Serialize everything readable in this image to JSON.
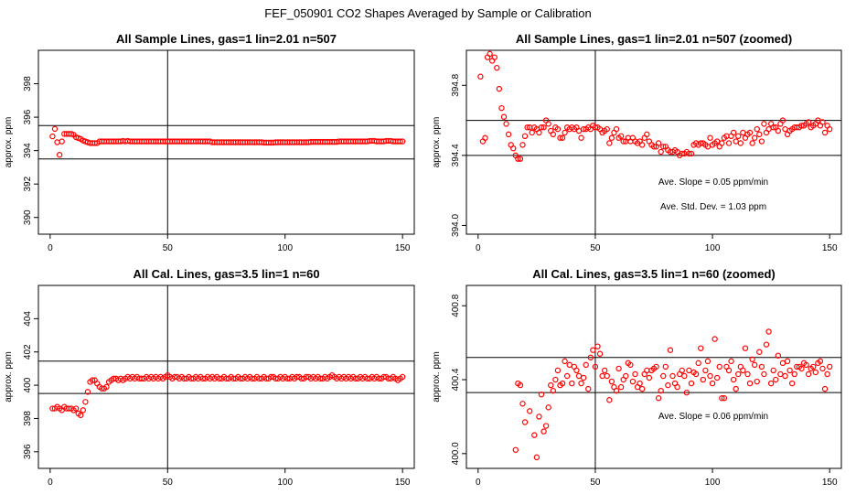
{
  "page": {
    "supertitle": "FEF_050901  CO2 Shapes Averaged by Sample or Calibration"
  },
  "chart_data": [
    {
      "type": "scatter",
      "title": "All Sample Lines, gas=1 lin=2.01 n=507",
      "xlabel": "",
      "ylabel": "approx. ppm",
      "xlim": [
        -5,
        155
      ],
      "ylim": [
        389,
        400
      ],
      "xticks": [
        "0",
        "50",
        "100",
        "150"
      ],
      "yticks": [
        "390",
        "392",
        "394",
        "396",
        "398"
      ],
      "hlines": [
        395.5,
        393.5
      ],
      "vline": 50,
      "color": "#ff0000",
      "annotations": [],
      "x": [
        1,
        2,
        3,
        4,
        5,
        6,
        7,
        8,
        9,
        10,
        11,
        12,
        13,
        14,
        15,
        16,
        17,
        18,
        19,
        20,
        21,
        22,
        23,
        24,
        25,
        26,
        27,
        28,
        29,
        30,
        31,
        32,
        33,
        34,
        35,
        36,
        37,
        38,
        39,
        40,
        41,
        42,
        43,
        44,
        45,
        46,
        47,
        48,
        49,
        50,
        51,
        52,
        53,
        54,
        55,
        56,
        57,
        58,
        59,
        60,
        61,
        62,
        63,
        64,
        65,
        66,
        67,
        68,
        69,
        70,
        71,
        72,
        73,
        74,
        75,
        76,
        77,
        78,
        79,
        80,
        81,
        82,
        83,
        84,
        85,
        86,
        87,
        88,
        89,
        90,
        91,
        92,
        93,
        94,
        95,
        96,
        97,
        98,
        99,
        100,
        101,
        102,
        103,
        104,
        105,
        106,
        107,
        108,
        109,
        110,
        111,
        112,
        113,
        114,
        115,
        116,
        117,
        118,
        119,
        120,
        121,
        122,
        123,
        124,
        125,
        126,
        127,
        128,
        129,
        130,
        131,
        132,
        133,
        134,
        135,
        136,
        137,
        138,
        139,
        140,
        141,
        142,
        143,
        144,
        145,
        146,
        147,
        148,
        149,
        150
      ],
      "y": [
        394.85,
        395.3,
        394.5,
        393.75,
        394.55,
        395.0,
        395.0,
        395.0,
        395.0,
        394.95,
        394.8,
        394.75,
        394.7,
        394.6,
        394.55,
        394.5,
        394.45,
        394.45,
        394.45,
        394.45,
        394.55,
        394.55,
        394.55,
        394.55,
        394.55,
        394.55,
        394.55,
        394.55,
        394.55,
        394.55,
        394.58,
        394.55,
        394.58,
        394.55,
        394.55,
        394.55,
        394.55,
        394.55,
        394.55,
        394.55,
        394.55,
        394.55,
        394.55,
        394.55,
        394.55,
        394.55,
        394.55,
        394.55,
        394.55,
        394.55,
        394.55,
        394.55,
        394.55,
        394.55,
        394.55,
        394.55,
        394.55,
        394.55,
        394.55,
        394.55,
        394.55,
        394.55,
        394.55,
        394.55,
        394.55,
        394.55,
        394.55,
        394.55,
        394.5,
        394.5,
        394.5,
        394.5,
        394.5,
        394.5,
        394.5,
        394.5,
        394.5,
        394.5,
        394.5,
        394.5,
        394.5,
        394.5,
        394.5,
        394.5,
        394.5,
        394.5,
        394.5,
        394.5,
        394.5,
        394.5,
        394.48,
        394.48,
        394.48,
        394.48,
        394.48,
        394.5,
        394.5,
        394.5,
        394.5,
        394.5,
        394.5,
        394.5,
        394.5,
        394.5,
        394.5,
        394.5,
        394.5,
        394.5,
        394.5,
        394.5,
        394.52,
        394.52,
        394.52,
        394.52,
        394.52,
        394.52,
        394.52,
        394.52,
        394.52,
        394.52,
        394.52,
        394.52,
        394.55,
        394.55,
        394.55,
        394.55,
        394.55,
        394.55,
        394.55,
        394.55,
        394.55,
        394.55,
        394.55,
        394.55,
        394.55,
        394.58,
        394.58,
        394.58,
        394.55,
        394.55,
        394.55,
        394.55,
        394.58,
        394.58,
        394.58,
        394.55,
        394.55,
        394.55,
        394.55,
        394.55
      ]
    },
    {
      "type": "scatter",
      "title": "All Sample Lines, gas=1 lin=2.01 n=507 (zoomed)",
      "xlabel": "",
      "ylabel": "approx. ppm",
      "xlim": [
        -5,
        155
      ],
      "ylim": [
        393.95,
        395.0
      ],
      "xticks": [
        "0",
        "50",
        "100",
        "150"
      ],
      "yticks": [
        "394.0",
        "394.4",
        "394.8"
      ],
      "hlines": [
        394.6,
        394.4
      ],
      "vline": 50,
      "color": "#ff0000",
      "annotations": [
        "Ave. Slope =  0.05  ppm/min",
        "Ave. Std. Dev. =  1.03  ppm"
      ],
      "x": [
        1,
        2,
        3,
        4,
        5,
        6,
        7,
        8,
        9,
        10,
        11,
        12,
        13,
        14,
        15,
        16,
        17,
        18,
        19,
        20,
        21,
        22,
        23,
        24,
        25,
        26,
        27,
        28,
        29,
        30,
        31,
        32,
        33,
        34,
        35,
        36,
        37,
        38,
        39,
        40,
        41,
        42,
        43,
        44,
        45,
        46,
        47,
        48,
        49,
        50,
        51,
        52,
        53,
        54,
        55,
        56,
        57,
        58,
        59,
        60,
        61,
        62,
        63,
        64,
        65,
        66,
        67,
        68,
        69,
        70,
        71,
        72,
        73,
        74,
        75,
        76,
        77,
        78,
        79,
        80,
        81,
        82,
        83,
        84,
        85,
        86,
        87,
        88,
        89,
        90,
        91,
        92,
        93,
        94,
        95,
        96,
        97,
        98,
        99,
        100,
        101,
        102,
        103,
        104,
        105,
        106,
        107,
        108,
        109,
        110,
        111,
        112,
        113,
        114,
        115,
        116,
        117,
        118,
        119,
        120,
        121,
        122,
        123,
        124,
        125,
        126,
        127,
        128,
        129,
        130,
        131,
        132,
        133,
        134,
        135,
        136,
        137,
        138,
        139,
        140,
        141,
        142,
        143,
        144,
        145,
        146,
        147,
        148,
        149,
        150
      ],
      "y": [
        394.85,
        394.48,
        394.5,
        394.96,
        394.98,
        394.94,
        394.96,
        394.9,
        394.78,
        394.67,
        394.62,
        394.58,
        394.52,
        394.46,
        394.44,
        394.4,
        394.38,
        394.38,
        394.46,
        394.51,
        394.56,
        394.56,
        394.53,
        394.56,
        394.55,
        394.53,
        394.56,
        394.56,
        394.6,
        394.58,
        394.54,
        394.52,
        394.56,
        394.55,
        394.5,
        394.5,
        394.53,
        394.56,
        394.55,
        394.56,
        394.55,
        394.56,
        394.54,
        394.5,
        394.55,
        394.55,
        394.56,
        394.55,
        394.57,
        394.56,
        394.56,
        394.55,
        394.53,
        394.54,
        394.55,
        394.47,
        394.5,
        394.53,
        394.55,
        394.5,
        394.51,
        394.48,
        394.48,
        394.5,
        394.48,
        394.5,
        394.48,
        394.47,
        394.48,
        394.46,
        394.5,
        394.52,
        394.48,
        394.46,
        394.45,
        394.45,
        394.47,
        394.42,
        394.45,
        394.45,
        394.43,
        394.42,
        394.42,
        394.43,
        394.42,
        394.4,
        394.41,
        394.41,
        394.42,
        394.41,
        394.41,
        394.46,
        394.47,
        394.46,
        394.47,
        394.47,
        394.46,
        394.45,
        394.5,
        394.46,
        394.47,
        394.48,
        394.45,
        394.47,
        394.5,
        394.51,
        394.47,
        394.51,
        394.53,
        394.48,
        394.51,
        394.47,
        394.53,
        394.5,
        394.52,
        394.53,
        394.47,
        394.5,
        394.55,
        394.52,
        394.48,
        394.58,
        394.53,
        394.55,
        394.58,
        394.56,
        394.56,
        394.54,
        394.58,
        394.6,
        394.55,
        394.52,
        394.54,
        394.55,
        394.56,
        394.56,
        394.56,
        394.57,
        394.57,
        394.58,
        394.59,
        394.56,
        394.57,
        394.58,
        394.6,
        394.57,
        394.59,
        394.53,
        394.57,
        394.55
      ]
    },
    {
      "type": "scatter",
      "title": "All Cal. Lines, gas=3.5 lin=1 n=60",
      "xlabel": "",
      "ylabel": "approx. ppm",
      "xlim": [
        -5,
        155
      ],
      "ylim": [
        395,
        406
      ],
      "xticks": [
        "0",
        "50",
        "100",
        "150"
      ],
      "yticks": [
        "396",
        "398",
        "400",
        "402",
        "404"
      ],
      "hlines": [
        401.45,
        399.5
      ],
      "vline": 50,
      "color": "#ff0000",
      "annotations": [],
      "x": [
        1,
        2,
        3,
        4,
        5,
        6,
        7,
        8,
        9,
        10,
        11,
        12,
        13,
        14,
        15,
        16,
        17,
        18,
        19,
        20,
        21,
        22,
        23,
        24,
        25,
        26,
        27,
        28,
        29,
        30,
        31,
        32,
        33,
        34,
        35,
        36,
        37,
        38,
        39,
        40,
        41,
        42,
        43,
        44,
        45,
        46,
        47,
        48,
        49,
        50,
        51,
        52,
        53,
        54,
        55,
        56,
        57,
        58,
        59,
        60,
        61,
        62,
        63,
        64,
        65,
        66,
        67,
        68,
        69,
        70,
        71,
        72,
        73,
        74,
        75,
        76,
        77,
        78,
        79,
        80,
        81,
        82,
        83,
        84,
        85,
        86,
        87,
        88,
        89,
        90,
        91,
        92,
        93,
        94,
        95,
        96,
        97,
        98,
        99,
        100,
        101,
        102,
        103,
        104,
        105,
        106,
        107,
        108,
        109,
        110,
        111,
        112,
        113,
        114,
        115,
        116,
        117,
        118,
        119,
        120,
        121,
        122,
        123,
        124,
        125,
        126,
        127,
        128,
        129,
        130,
        131,
        132,
        133,
        134,
        135,
        136,
        137,
        138,
        139,
        140,
        141,
        142,
        143,
        144,
        145,
        146,
        147,
        148,
        149,
        150
      ],
      "y": [
        398.6,
        398.6,
        398.7,
        398.6,
        398.5,
        398.7,
        398.6,
        398.6,
        398.6,
        398.5,
        398.6,
        398.3,
        398.2,
        398.5,
        399.0,
        399.6,
        400.2,
        400.3,
        400.3,
        400.1,
        399.9,
        399.8,
        399.8,
        399.9,
        400.2,
        400.3,
        400.4,
        400.4,
        400.3,
        400.4,
        400.3,
        400.4,
        400.5,
        400.4,
        400.5,
        400.4,
        400.5,
        400.4,
        400.4,
        400.4,
        400.5,
        400.4,
        400.5,
        400.4,
        400.5,
        400.4,
        400.5,
        400.4,
        400.5,
        400.6,
        400.5,
        400.4,
        400.5,
        400.5,
        400.4,
        400.5,
        400.4,
        400.4,
        400.5,
        400.4,
        400.4,
        400.5,
        400.4,
        400.5,
        400.4,
        400.4,
        400.5,
        400.4,
        400.5,
        400.4,
        400.5,
        400.4,
        400.4,
        400.5,
        400.4,
        400.4,
        400.5,
        400.4,
        400.4,
        400.5,
        400.4,
        400.4,
        400.5,
        400.4,
        400.5,
        400.4,
        400.4,
        400.5,
        400.4,
        400.4,
        400.5,
        400.4,
        400.4,
        400.5,
        400.5,
        400.4,
        400.4,
        400.5,
        400.4,
        400.5,
        400.4,
        400.4,
        400.5,
        400.4,
        400.5,
        400.5,
        400.4,
        400.4,
        400.5,
        400.5,
        400.4,
        400.5,
        400.4,
        400.5,
        400.4,
        400.4,
        400.5,
        400.4,
        400.5,
        400.6,
        400.5,
        400.4,
        400.5,
        400.4,
        400.5,
        400.4,
        400.5,
        400.4,
        400.5,
        400.4,
        400.4,
        400.5,
        400.4,
        400.5,
        400.4,
        400.4,
        400.5,
        400.4,
        400.5,
        400.4,
        400.4,
        400.5,
        400.5,
        400.4,
        400.4,
        400.5,
        400.4,
        400.3,
        400.4,
        400.5
      ]
    },
    {
      "type": "scatter",
      "title": "All Cal. Lines, gas=3.5 lin=1 n=60 (zoomed)",
      "xlabel": "",
      "ylabel": "approx. ppm",
      "xlim": [
        -5,
        155
      ],
      "ylim": [
        399.92,
        400.91
      ],
      "xticks": [
        "0",
        "50",
        "100",
        "150"
      ],
      "yticks": [
        "400.0",
        "400.4",
        "400.8"
      ],
      "hlines": [
        400.52,
        400.33
      ],
      "vline": 50,
      "color": "#ff0000",
      "annotations": [
        "Ave. Slope =  0.06  ppm/min"
      ],
      "x": [
        16,
        17,
        18,
        19,
        20,
        22,
        24,
        25,
        26,
        27,
        28,
        29,
        30,
        31,
        32,
        33,
        34,
        35,
        36,
        37,
        38,
        39,
        40,
        41,
        42,
        43,
        44,
        45,
        46,
        47,
        48,
        49,
        50,
        51,
        52,
        53,
        54,
        55,
        56,
        57,
        58,
        59,
        60,
        61,
        62,
        63,
        64,
        65,
        66,
        67,
        68,
        69,
        70,
        71,
        72,
        73,
        74,
        75,
        76,
        77,
        78,
        79,
        80,
        81,
        82,
        83,
        84,
        85,
        86,
        87,
        88,
        89,
        90,
        91,
        92,
        93,
        94,
        95,
        96,
        97,
        98,
        99,
        100,
        101,
        102,
        103,
        104,
        105,
        106,
        107,
        108,
        109,
        110,
        111,
        112,
        113,
        114,
        115,
        116,
        117,
        118,
        119,
        120,
        121,
        122,
        123,
        124,
        125,
        126,
        127,
        128,
        129,
        130,
        131,
        132,
        133,
        134,
        135,
        136,
        137,
        138,
        139,
        140,
        141,
        142,
        143,
        144,
        145,
        146,
        147,
        148,
        149,
        150
      ],
      "y": [
        400.02,
        400.38,
        400.37,
        400.27,
        400.17,
        400.23,
        400.1,
        399.98,
        400.2,
        400.32,
        400.12,
        400.15,
        400.25,
        400.37,
        400.34,
        400.4,
        400.45,
        400.37,
        400.38,
        400.5,
        400.42,
        400.48,
        400.38,
        400.47,
        400.45,
        400.42,
        400.38,
        400.41,
        400.48,
        400.35,
        400.52,
        400.56,
        400.47,
        400.58,
        400.54,
        400.42,
        400.45,
        400.42,
        400.29,
        400.39,
        400.36,
        400.34,
        400.46,
        400.36,
        400.4,
        400.42,
        400.49,
        400.48,
        400.39,
        400.43,
        400.36,
        400.38,
        400.35,
        400.43,
        400.45,
        400.41,
        400.45,
        400.46,
        400.47,
        400.3,
        400.34,
        400.42,
        400.47,
        400.37,
        400.56,
        400.42,
        400.38,
        400.36,
        400.43,
        400.45,
        400.42,
        400.33,
        400.45,
        400.38,
        400.44,
        400.43,
        400.49,
        400.57,
        400.4,
        400.45,
        400.5,
        400.42,
        400.38,
        400.62,
        400.41,
        400.47,
        400.3,
        400.3,
        400.47,
        400.45,
        400.5,
        400.4,
        400.35,
        400.43,
        400.47,
        400.45,
        400.57,
        400.43,
        400.38,
        400.51,
        400.48,
        400.39,
        400.55,
        400.47,
        400.43,
        400.59,
        400.66,
        400.38,
        400.45,
        400.4,
        400.53,
        400.43,
        400.49,
        400.42,
        400.5,
        400.45,
        400.38,
        400.43,
        400.47,
        400.47,
        400.46,
        400.49,
        400.48,
        400.43,
        400.46,
        400.47,
        400.44,
        400.49,
        400.5,
        400.46,
        400.35,
        400.43,
        400.47
      ]
    }
  ]
}
